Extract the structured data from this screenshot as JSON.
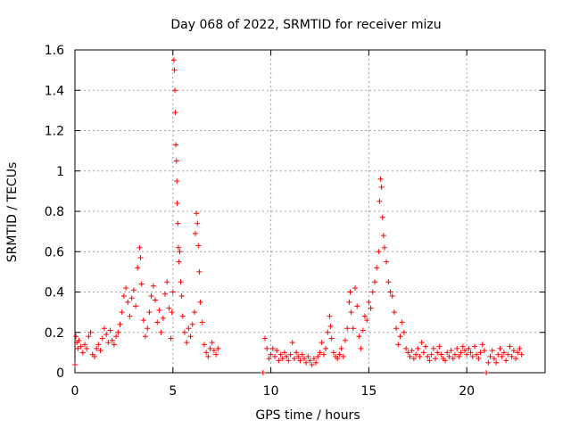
{
  "chart_data": {
    "type": "scatter",
    "title": "Day 068 of 2022, SRMTID for receiver mizu",
    "xlabel": "GPS time / hours",
    "ylabel": "SRMTID / TECUs",
    "xlim": [
      0,
      24
    ],
    "ylim": [
      0,
      1.6
    ],
    "x_ticks": [
      0,
      5,
      10,
      15,
      20
    ],
    "x_tick_labels": [
      "0",
      "5",
      "10",
      "15",
      "20"
    ],
    "y_ticks": [
      0,
      0.2,
      0.4,
      0.6,
      0.8,
      1.0,
      1.2,
      1.4,
      1.6
    ],
    "y_tick_labels": [
      "0",
      "0.2",
      "0.4",
      "0.6",
      "0.8",
      "1",
      "1.2",
      "1.4",
      "1.6"
    ],
    "grid": true,
    "marker": "plus",
    "color": "#ff0000",
    "series": [
      {
        "name": "SRMTID",
        "points": [
          [
            0.0,
            0.04
          ],
          [
            0.05,
            0.18
          ],
          [
            0.1,
            0.15
          ],
          [
            0.15,
            0.12
          ],
          [
            0.2,
            0.16
          ],
          [
            0.3,
            0.13
          ],
          [
            0.4,
            0.1
          ],
          [
            0.5,
            0.14
          ],
          [
            0.6,
            0.12
          ],
          [
            0.7,
            0.18
          ],
          [
            0.8,
            0.2
          ],
          [
            0.9,
            0.09
          ],
          [
            1.0,
            0.08
          ],
          [
            1.1,
            0.12
          ],
          [
            1.2,
            0.14
          ],
          [
            1.3,
            0.11
          ],
          [
            1.4,
            0.17
          ],
          [
            1.5,
            0.22
          ],
          [
            1.6,
            0.19
          ],
          [
            1.7,
            0.15
          ],
          [
            1.8,
            0.21
          ],
          [
            1.9,
            0.16
          ],
          [
            2.0,
            0.14
          ],
          [
            2.1,
            0.18
          ],
          [
            2.2,
            0.2
          ],
          [
            2.3,
            0.24
          ],
          [
            2.4,
            0.3
          ],
          [
            2.5,
            0.38
          ],
          [
            2.6,
            0.42
          ],
          [
            2.7,
            0.35
          ],
          [
            2.8,
            0.28
          ],
          [
            2.9,
            0.37
          ],
          [
            3.0,
            0.41
          ],
          [
            3.1,
            0.33
          ],
          [
            3.2,
            0.52
          ],
          [
            3.3,
            0.62
          ],
          [
            3.35,
            0.57
          ],
          [
            3.4,
            0.44
          ],
          [
            3.5,
            0.26
          ],
          [
            3.6,
            0.18
          ],
          [
            3.7,
            0.22
          ],
          [
            3.8,
            0.3
          ],
          [
            3.9,
            0.38
          ],
          [
            4.0,
            0.43
          ],
          [
            4.1,
            0.36
          ],
          [
            4.2,
            0.25
          ],
          [
            4.3,
            0.31
          ],
          [
            4.4,
            0.2
          ],
          [
            4.5,
            0.27
          ],
          [
            4.6,
            0.39
          ],
          [
            4.7,
            0.45
          ],
          [
            4.8,
            0.32
          ],
          [
            4.9,
            0.17
          ],
          [
            4.95,
            0.3
          ],
          [
            5.0,
            0.4
          ],
          [
            5.05,
            1.55
          ],
          [
            5.08,
            1.5
          ],
          [
            5.1,
            1.4
          ],
          [
            5.12,
            1.29
          ],
          [
            5.15,
            1.13
          ],
          [
            5.18,
            1.05
          ],
          [
            5.2,
            0.95
          ],
          [
            5.22,
            0.84
          ],
          [
            5.25,
            0.74
          ],
          [
            5.28,
            0.62
          ],
          [
            5.3,
            0.55
          ],
          [
            5.35,
            0.6
          ],
          [
            5.4,
            0.45
          ],
          [
            5.45,
            0.38
          ],
          [
            5.5,
            0.28
          ],
          [
            5.6,
            0.2
          ],
          [
            5.7,
            0.15
          ],
          [
            5.8,
            0.22
          ],
          [
            5.9,
            0.18
          ],
          [
            6.0,
            0.24
          ],
          [
            6.1,
            0.3
          ],
          [
            6.15,
            0.69
          ],
          [
            6.2,
            0.79
          ],
          [
            6.25,
            0.74
          ],
          [
            6.3,
            0.63
          ],
          [
            6.35,
            0.5
          ],
          [
            6.4,
            0.35
          ],
          [
            6.5,
            0.25
          ],
          [
            6.6,
            0.14
          ],
          [
            6.7,
            0.1
          ],
          [
            6.8,
            0.08
          ],
          [
            6.9,
            0.12
          ],
          [
            7.0,
            0.15
          ],
          [
            7.1,
            0.11
          ],
          [
            7.2,
            0.09
          ],
          [
            7.3,
            0.12
          ],
          [
            9.6,
            0.0
          ],
          [
            9.7,
            0.17
          ],
          [
            9.8,
            0.12
          ],
          [
            9.9,
            0.07
          ],
          [
            10.0,
            0.09
          ],
          [
            10.1,
            0.12
          ],
          [
            10.2,
            0.08
          ],
          [
            10.3,
            0.11
          ],
          [
            10.4,
            0.06
          ],
          [
            10.5,
            0.09
          ],
          [
            10.6,
            0.07
          ],
          [
            10.7,
            0.1
          ],
          [
            10.8,
            0.08
          ],
          [
            10.9,
            0.06
          ],
          [
            11.0,
            0.09
          ],
          [
            11.1,
            0.15
          ],
          [
            11.2,
            0.07
          ],
          [
            11.3,
            0.1
          ],
          [
            11.4,
            0.08
          ],
          [
            11.5,
            0.06
          ],
          [
            11.6,
            0.09
          ],
          [
            11.7,
            0.07
          ],
          [
            11.8,
            0.05
          ],
          [
            11.9,
            0.08
          ],
          [
            12.0,
            0.06
          ],
          [
            12.1,
            0.04
          ],
          [
            12.2,
            0.07
          ],
          [
            12.3,
            0.05
          ],
          [
            12.4,
            0.08
          ],
          [
            12.5,
            0.1
          ],
          [
            12.6,
            0.15
          ],
          [
            12.7,
            0.09
          ],
          [
            12.8,
            0.12
          ],
          [
            12.9,
            0.2
          ],
          [
            13.0,
            0.28
          ],
          [
            13.05,
            0.23
          ],
          [
            13.1,
            0.17
          ],
          [
            13.2,
            0.1
          ],
          [
            13.3,
            0.08
          ],
          [
            13.4,
            0.07
          ],
          [
            13.5,
            0.09
          ],
          [
            13.6,
            0.12
          ],
          [
            13.7,
            0.08
          ],
          [
            13.8,
            0.16
          ],
          [
            13.9,
            0.22
          ],
          [
            14.0,
            0.35
          ],
          [
            14.05,
            0.4
          ],
          [
            14.1,
            0.3
          ],
          [
            14.2,
            0.22
          ],
          [
            14.3,
            0.42
          ],
          [
            14.4,
            0.33
          ],
          [
            14.5,
            0.18
          ],
          [
            14.6,
            0.12
          ],
          [
            14.7,
            0.21
          ],
          [
            14.8,
            0.28
          ],
          [
            14.9,
            0.26
          ],
          [
            15.0,
            0.35
          ],
          [
            15.1,
            0.32
          ],
          [
            15.2,
            0.4
          ],
          [
            15.3,
            0.45
          ],
          [
            15.4,
            0.52
          ],
          [
            15.5,
            0.6
          ],
          [
            15.55,
            0.85
          ],
          [
            15.6,
            0.96
          ],
          [
            15.65,
            0.92
          ],
          [
            15.7,
            0.77
          ],
          [
            15.75,
            0.68
          ],
          [
            15.8,
            0.62
          ],
          [
            15.9,
            0.55
          ],
          [
            16.0,
            0.45
          ],
          [
            16.1,
            0.4
          ],
          [
            16.2,
            0.38
          ],
          [
            16.3,
            0.3
          ],
          [
            16.4,
            0.22
          ],
          [
            16.5,
            0.14
          ],
          [
            16.6,
            0.18
          ],
          [
            16.7,
            0.25
          ],
          [
            16.8,
            0.2
          ],
          [
            16.9,
            0.12
          ],
          [
            17.0,
            0.1
          ],
          [
            17.1,
            0.08
          ],
          [
            17.2,
            0.11
          ],
          [
            17.3,
            0.07
          ],
          [
            17.4,
            0.09
          ],
          [
            17.5,
            0.12
          ],
          [
            17.6,
            0.08
          ],
          [
            17.7,
            0.15
          ],
          [
            17.8,
            0.1
          ],
          [
            17.9,
            0.13
          ],
          [
            18.0,
            0.08
          ],
          [
            18.1,
            0.06
          ],
          [
            18.2,
            0.09
          ],
          [
            18.3,
            0.12
          ],
          [
            18.4,
            0.07
          ],
          [
            18.5,
            0.1
          ],
          [
            18.6,
            0.13
          ],
          [
            18.7,
            0.09
          ],
          [
            18.8,
            0.07
          ],
          [
            18.9,
            0.06
          ],
          [
            19.0,
            0.1
          ],
          [
            19.1,
            0.08
          ],
          [
            19.2,
            0.11
          ],
          [
            19.3,
            0.07
          ],
          [
            19.4,
            0.09
          ],
          [
            19.5,
            0.12
          ],
          [
            19.6,
            0.08
          ],
          [
            19.7,
            0.1
          ],
          [
            19.8,
            0.13
          ],
          [
            19.9,
            0.11
          ],
          [
            20.0,
            0.09
          ],
          [
            20.1,
            0.12
          ],
          [
            20.2,
            0.1
          ],
          [
            20.3,
            0.08
          ],
          [
            20.4,
            0.13
          ],
          [
            20.5,
            0.09
          ],
          [
            20.6,
            0.07
          ],
          [
            20.7,
            0.1
          ],
          [
            20.8,
            0.14
          ],
          [
            20.9,
            0.11
          ],
          [
            21.0,
            0.0
          ],
          [
            21.1,
            0.05
          ],
          [
            21.2,
            0.08
          ],
          [
            21.3,
            0.11
          ],
          [
            21.4,
            0.07
          ],
          [
            21.5,
            0.05
          ],
          [
            21.6,
            0.09
          ],
          [
            21.7,
            0.12
          ],
          [
            21.8,
            0.08
          ],
          [
            21.9,
            0.1
          ],
          [
            22.0,
            0.06
          ],
          [
            22.1,
            0.09
          ],
          [
            22.2,
            0.13
          ],
          [
            22.3,
            0.08
          ],
          [
            22.4,
            0.11
          ],
          [
            22.5,
            0.07
          ],
          [
            22.6,
            0.1
          ],
          [
            22.7,
            0.12
          ],
          [
            22.8,
            0.09
          ]
        ]
      }
    ]
  }
}
